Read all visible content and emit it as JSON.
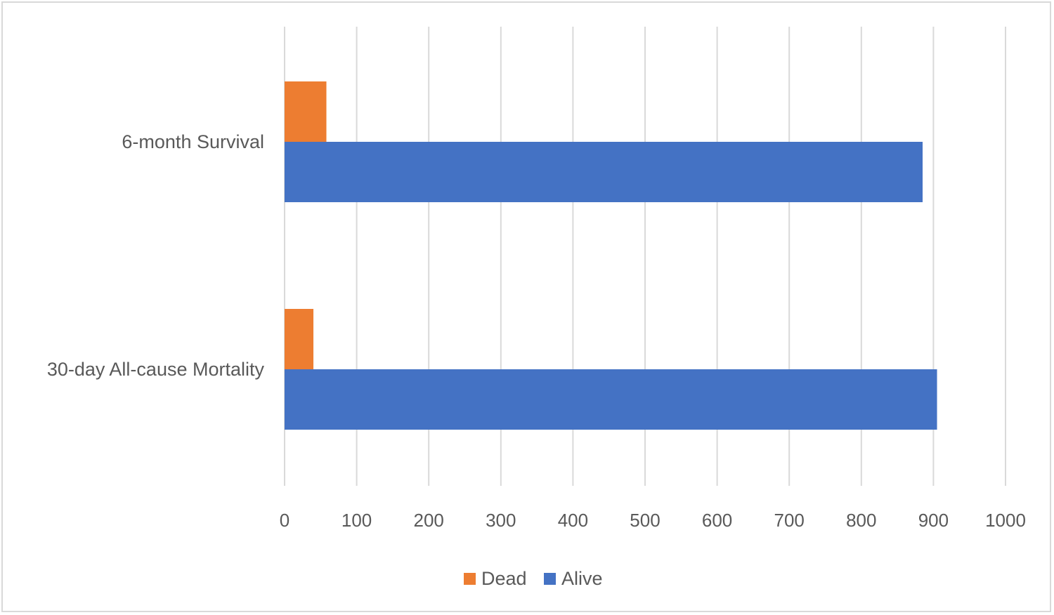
{
  "chart_data": {
    "type": "bar",
    "orientation": "horizontal",
    "categories": [
      "6-month Survival",
      "30-day All-cause Mortality"
    ],
    "series": [
      {
        "name": "Dead",
        "color": "#ED7D31",
        "values": [
          58,
          40
        ]
      },
      {
        "name": "Alive",
        "color": "#4472C4",
        "values": [
          885,
          905
        ]
      }
    ],
    "xlim": [
      0,
      1000
    ],
    "xticks": [
      0,
      100,
      200,
      300,
      400,
      500,
      600,
      700,
      800,
      900,
      1000
    ],
    "grid": true,
    "legend_position": "bottom"
  }
}
